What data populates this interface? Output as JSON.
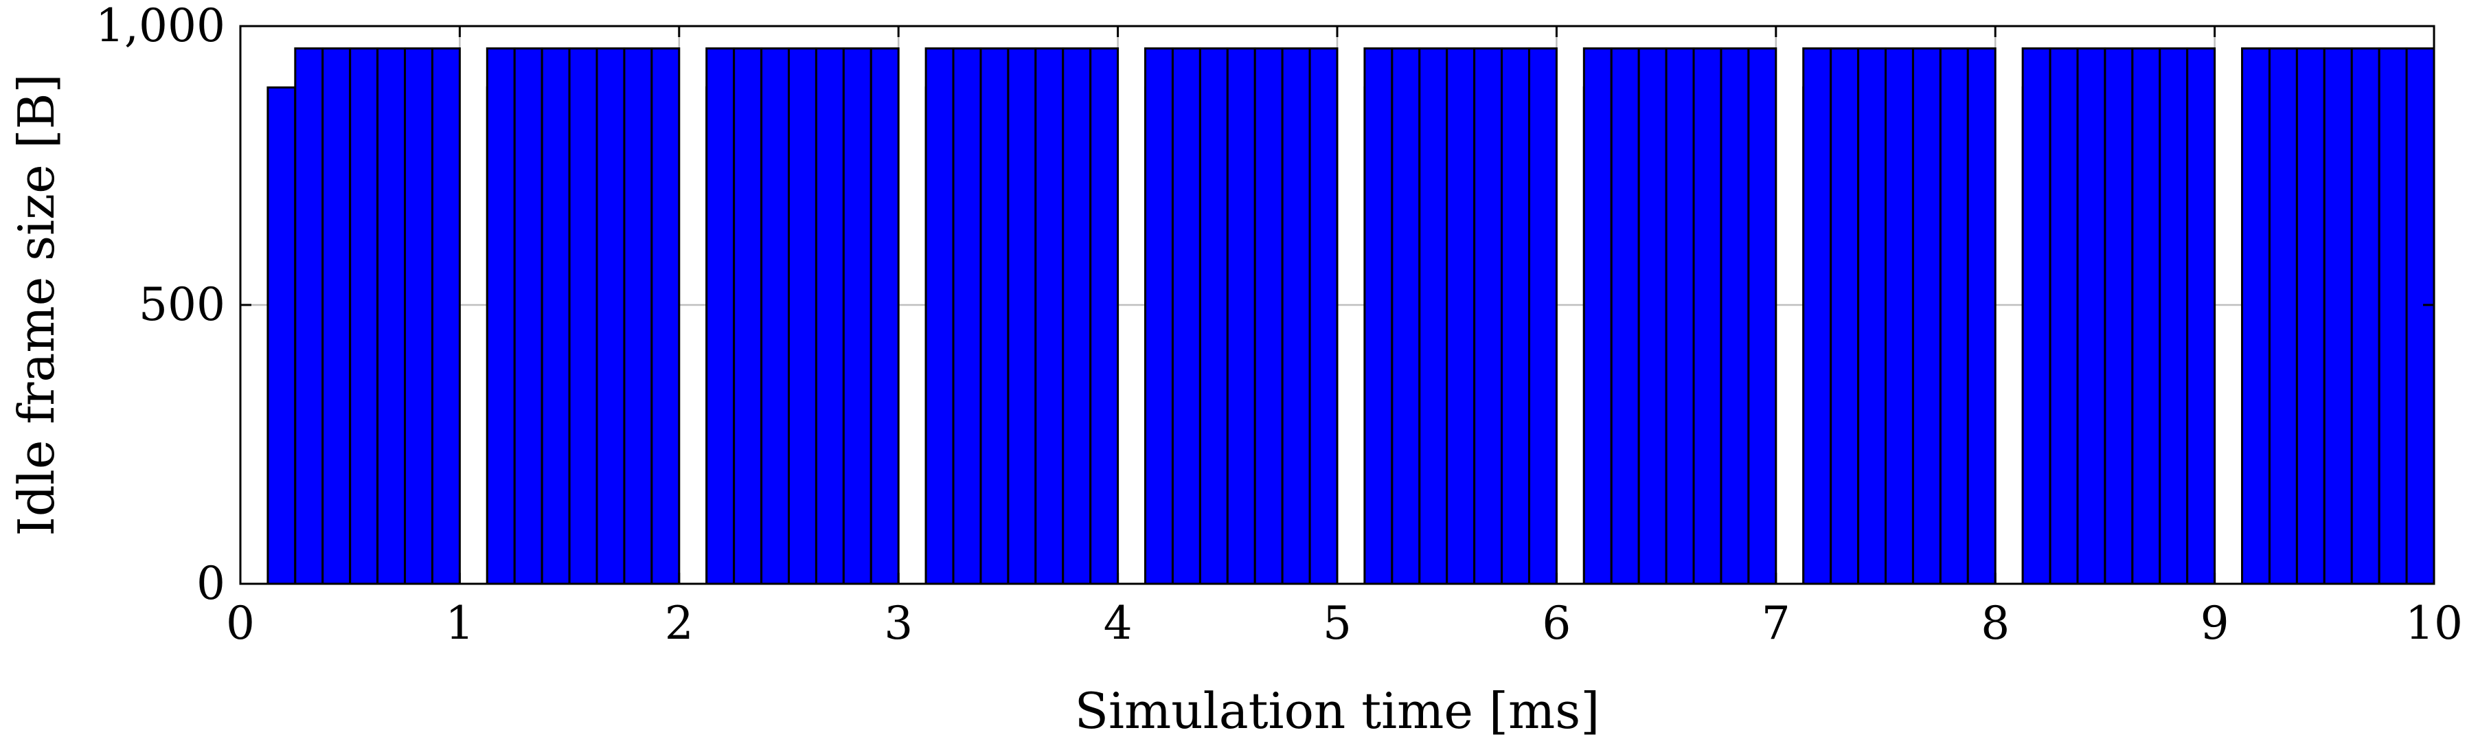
{
  "chart_data": {
    "type": "bar",
    "title": "",
    "xlabel": "Simulation time [ms]",
    "ylabel": "Idle frame size [B]",
    "xlim": [
      0,
      10
    ],
    "ylim": [
      0,
      1000
    ],
    "x_ticks": [
      {
        "value": 0,
        "label": "0"
      },
      {
        "value": 1,
        "label": "1"
      },
      {
        "value": 2,
        "label": "2"
      },
      {
        "value": 3,
        "label": "3"
      },
      {
        "value": 4,
        "label": "4"
      },
      {
        "value": 5,
        "label": "5"
      },
      {
        "value": 6,
        "label": "6"
      },
      {
        "value": 7,
        "label": "7"
      },
      {
        "value": 8,
        "label": "8"
      },
      {
        "value": 9,
        "label": "9"
      },
      {
        "value": 10,
        "label": "10"
      }
    ],
    "y_ticks": [
      {
        "value": 0,
        "label": "0"
      },
      {
        "value": 500,
        "label": "500"
      },
      {
        "value": 1000,
        "label": "1,000"
      }
    ],
    "grid": true,
    "legend": "none",
    "colors": {
      "bar_fill": "#0000ff",
      "bar_stroke": "#000000",
      "grid": "#bfbfbf"
    },
    "bar_width": 0.125,
    "bars": [
      {
        "x": 0.125,
        "y": 890
      },
      {
        "x": 0.25,
        "y": 890
      },
      {
        "x": 0.25,
        "y": 960
      },
      {
        "x": 0.375,
        "y": 960
      },
      {
        "x": 0.5,
        "y": 960
      },
      {
        "x": 0.625,
        "y": 960
      },
      {
        "x": 0.75,
        "y": 960
      },
      {
        "x": 0.875,
        "y": 960
      },
      {
        "x": 1.125,
        "y": 890
      },
      {
        "x": 1.125,
        "y": 960
      },
      {
        "x": 1.25,
        "y": 960
      },
      {
        "x": 1.375,
        "y": 960
      },
      {
        "x": 1.5,
        "y": 960
      },
      {
        "x": 1.625,
        "y": 960
      },
      {
        "x": 1.75,
        "y": 960
      },
      {
        "x": 1.875,
        "y": 960
      },
      {
        "x": 2.125,
        "y": 890
      },
      {
        "x": 2.125,
        "y": 960
      },
      {
        "x": 2.25,
        "y": 960
      },
      {
        "x": 2.375,
        "y": 960
      },
      {
        "x": 2.5,
        "y": 960
      },
      {
        "x": 2.625,
        "y": 960
      },
      {
        "x": 2.75,
        "y": 960
      },
      {
        "x": 2.875,
        "y": 960
      },
      {
        "x": 3.125,
        "y": 890
      },
      {
        "x": 3.125,
        "y": 960
      },
      {
        "x": 3.25,
        "y": 960
      },
      {
        "x": 3.375,
        "y": 960
      },
      {
        "x": 3.5,
        "y": 960
      },
      {
        "x": 3.625,
        "y": 960
      },
      {
        "x": 3.75,
        "y": 960
      },
      {
        "x": 3.875,
        "y": 960
      },
      {
        "x": 4.125,
        "y": 890
      },
      {
        "x": 4.125,
        "y": 960
      },
      {
        "x": 4.25,
        "y": 960
      },
      {
        "x": 4.375,
        "y": 960
      },
      {
        "x": 4.5,
        "y": 960
      },
      {
        "x": 4.625,
        "y": 960
      },
      {
        "x": 4.75,
        "y": 960
      },
      {
        "x": 4.875,
        "y": 960
      },
      {
        "x": 5.125,
        "y": 890
      },
      {
        "x": 5.125,
        "y": 960
      },
      {
        "x": 5.25,
        "y": 960
      },
      {
        "x": 5.375,
        "y": 960
      },
      {
        "x": 5.5,
        "y": 960
      },
      {
        "x": 5.625,
        "y": 960
      },
      {
        "x": 5.75,
        "y": 960
      },
      {
        "x": 5.875,
        "y": 960
      },
      {
        "x": 6.125,
        "y": 890
      },
      {
        "x": 6.125,
        "y": 960
      },
      {
        "x": 6.25,
        "y": 960
      },
      {
        "x": 6.375,
        "y": 960
      },
      {
        "x": 6.5,
        "y": 960
      },
      {
        "x": 6.625,
        "y": 960
      },
      {
        "x": 6.75,
        "y": 960
      },
      {
        "x": 6.875,
        "y": 960
      },
      {
        "x": 7.125,
        "y": 890
      },
      {
        "x": 7.125,
        "y": 960
      },
      {
        "x": 7.25,
        "y": 960
      },
      {
        "x": 7.375,
        "y": 960
      },
      {
        "x": 7.5,
        "y": 960
      },
      {
        "x": 7.625,
        "y": 960
      },
      {
        "x": 7.75,
        "y": 960
      },
      {
        "x": 7.875,
        "y": 960
      },
      {
        "x": 8.125,
        "y": 890
      },
      {
        "x": 8.125,
        "y": 960
      },
      {
        "x": 8.25,
        "y": 960
      },
      {
        "x": 8.375,
        "y": 960
      },
      {
        "x": 8.5,
        "y": 960
      },
      {
        "x": 8.625,
        "y": 960
      },
      {
        "x": 8.75,
        "y": 960
      },
      {
        "x": 8.875,
        "y": 960
      },
      {
        "x": 9.125,
        "y": 890
      },
      {
        "x": 9.125,
        "y": 960
      },
      {
        "x": 9.25,
        "y": 960
      },
      {
        "x": 9.375,
        "y": 960
      },
      {
        "x": 9.5,
        "y": 960
      },
      {
        "x": 9.625,
        "y": 960
      },
      {
        "x": 9.75,
        "y": 960
      },
      {
        "x": 9.875,
        "y": 960
      }
    ]
  }
}
